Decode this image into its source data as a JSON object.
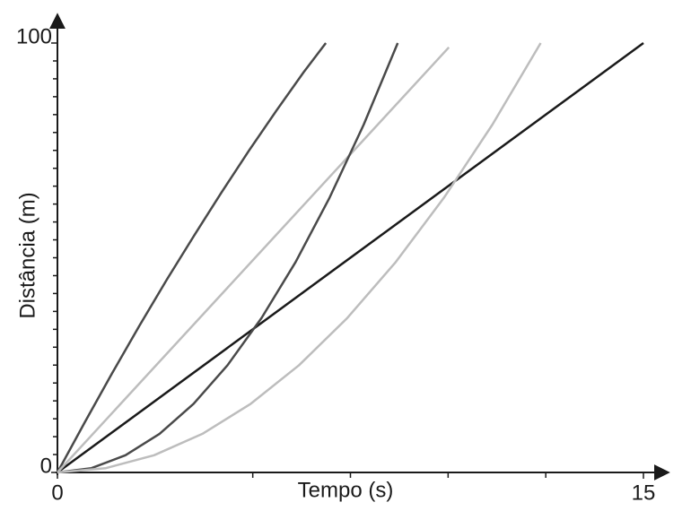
{
  "chart_data": {
    "type": "line",
    "xlabel": "Tempo (s)",
    "ylabel": "Distância (m)",
    "xlim": [
      0,
      15
    ],
    "ylim": [
      0,
      100
    ],
    "xticks": [
      0,
      15
    ],
    "yticks": [
      0,
      100
    ],
    "x_minor_ticks": [
      5,
      7.5,
      10,
      12.5
    ],
    "y_minor_ticks": [
      4.17,
      8.33,
      12.5,
      16.67,
      20.83,
      25,
      29.17,
      33.33,
      37.5,
      41.67,
      45.83,
      50,
      54.17,
      58.33,
      62.5,
      66.67,
      70.83,
      75,
      79.17,
      83.33,
      87.5,
      91.67,
      95.83
    ],
    "series": [
      {
        "color": "#1a1a1a",
        "x": [
          0,
          15
        ],
        "values": [
          0,
          100
        ]
      },
      {
        "color": "#4a4a4a",
        "x": [
          0,
          0.7,
          1.4,
          2.1,
          2.8,
          3.5,
          4.2,
          4.9,
          5.6,
          6.3,
          6.87
        ],
        "values": [
          0,
          11.7,
          23.1,
          34.2,
          44.9,
          55.2,
          65.2,
          74.9,
          84.2,
          93.2,
          100
        ]
      },
      {
        "color": "#bdbdbd",
        "x": [
          0,
          10.02
        ],
        "values": [
          0,
          99
        ]
      },
      {
        "color": "#4a4a4a",
        "x": [
          0,
          0.871,
          1.742,
          2.613,
          3.484,
          4.355,
          5.226,
          6.097,
          6.968,
          7.839,
          8.71
        ],
        "values": [
          0,
          1,
          4,
          9,
          16,
          25,
          36,
          49,
          64,
          81,
          100
        ]
      },
      {
        "color": "#bdbdbd",
        "x": [
          0,
          1.237,
          2.474,
          3.711,
          4.948,
          6.185,
          7.422,
          8.659,
          9.896,
          11.133,
          12.37
        ],
        "values": [
          0,
          1,
          4,
          9,
          16,
          25,
          36,
          49,
          64,
          81,
          100
        ]
      }
    ]
  }
}
